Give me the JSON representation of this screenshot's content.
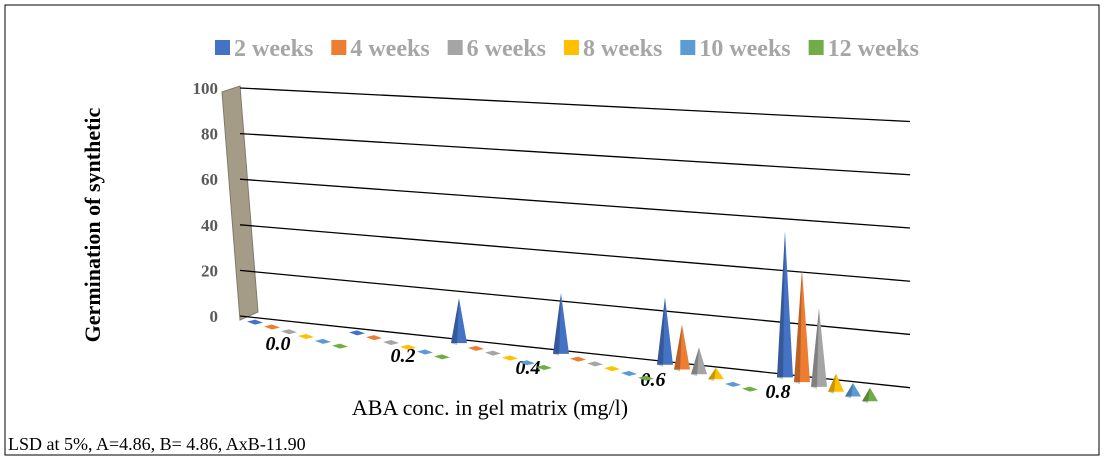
{
  "chart_data": {
    "type": "bar3d",
    "y_label": "Germination of synthetic",
    "x_label": "ABA conc. in gel matrix (mg/l)",
    "note": "LSD at 5%, A=4.86, B= 4.86, AxB-11.90",
    "categories": [
      "0.0",
      "0.2",
      "0.4",
      "0.6",
      "0.8",
      null
    ],
    "series": [
      {
        "name": "2 weeks",
        "color": "#4472c4",
        "values": [
          0,
          0,
          20,
          27,
          30,
          65
        ]
      },
      {
        "name": "4 weeks",
        "color": "#ed7d31",
        "values": [
          0,
          0,
          0,
          0,
          20,
          50
        ]
      },
      {
        "name": "6 weeks",
        "color": "#a5a5a5",
        "values": [
          0,
          0,
          0,
          0,
          12,
          35
        ]
      },
      {
        "name": "8 weeks",
        "color": "#ffc000",
        "values": [
          0,
          0,
          0,
          0,
          5,
          8
        ]
      },
      {
        "name": "10 weeks",
        "color": "#5b9bd5",
        "values": [
          0,
          0,
          0,
          0,
          0,
          6
        ]
      },
      {
        "name": "12 weeks",
        "color": "#70ad47",
        "values": [
          0,
          0,
          0,
          0,
          0,
          6
        ]
      }
    ],
    "ylim": [
      0,
      100
    ],
    "yticks": [
      0,
      20,
      40,
      60,
      80,
      100
    ],
    "grid": true
  }
}
